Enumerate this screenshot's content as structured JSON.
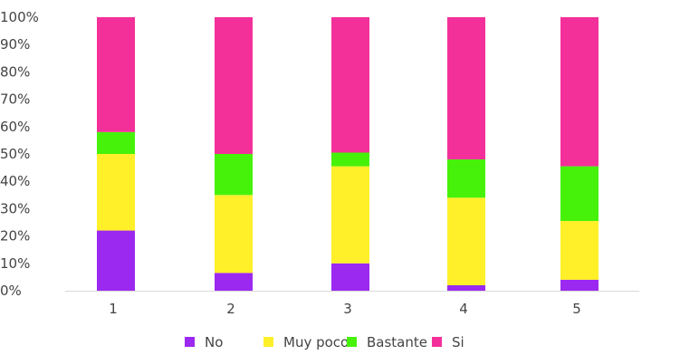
{
  "chart_data": {
    "type": "bar",
    "stacked": true,
    "percent_stacked": true,
    "categories": [
      "1",
      "2",
      "3",
      "4",
      "5"
    ],
    "series": [
      {
        "name": "No",
        "color": "#9b29f0",
        "values": [
          22,
          6.5,
          10,
          2,
          4
        ]
      },
      {
        "name": "Muy poco",
        "color": "#fff02a",
        "values": [
          28,
          28.5,
          35.5,
          32,
          21.5
        ]
      },
      {
        "name": "Bastante",
        "color": "#46f20a",
        "values": [
          8,
          15,
          5,
          14,
          20
        ]
      },
      {
        "name": "Si",
        "color": "#f3309a",
        "values": [
          42,
          50,
          49.5,
          52,
          54.5
        ]
      }
    ],
    "yticks": [
      "0%",
      "10%",
      "20%",
      "30%",
      "40%",
      "50%",
      "60%",
      "70%",
      "80%",
      "90%",
      "100%"
    ],
    "ylim": [
      0,
      100
    ],
    "grid": false,
    "legend_position": "bottom",
    "title": "",
    "xlabel": "",
    "ylabel": ""
  }
}
